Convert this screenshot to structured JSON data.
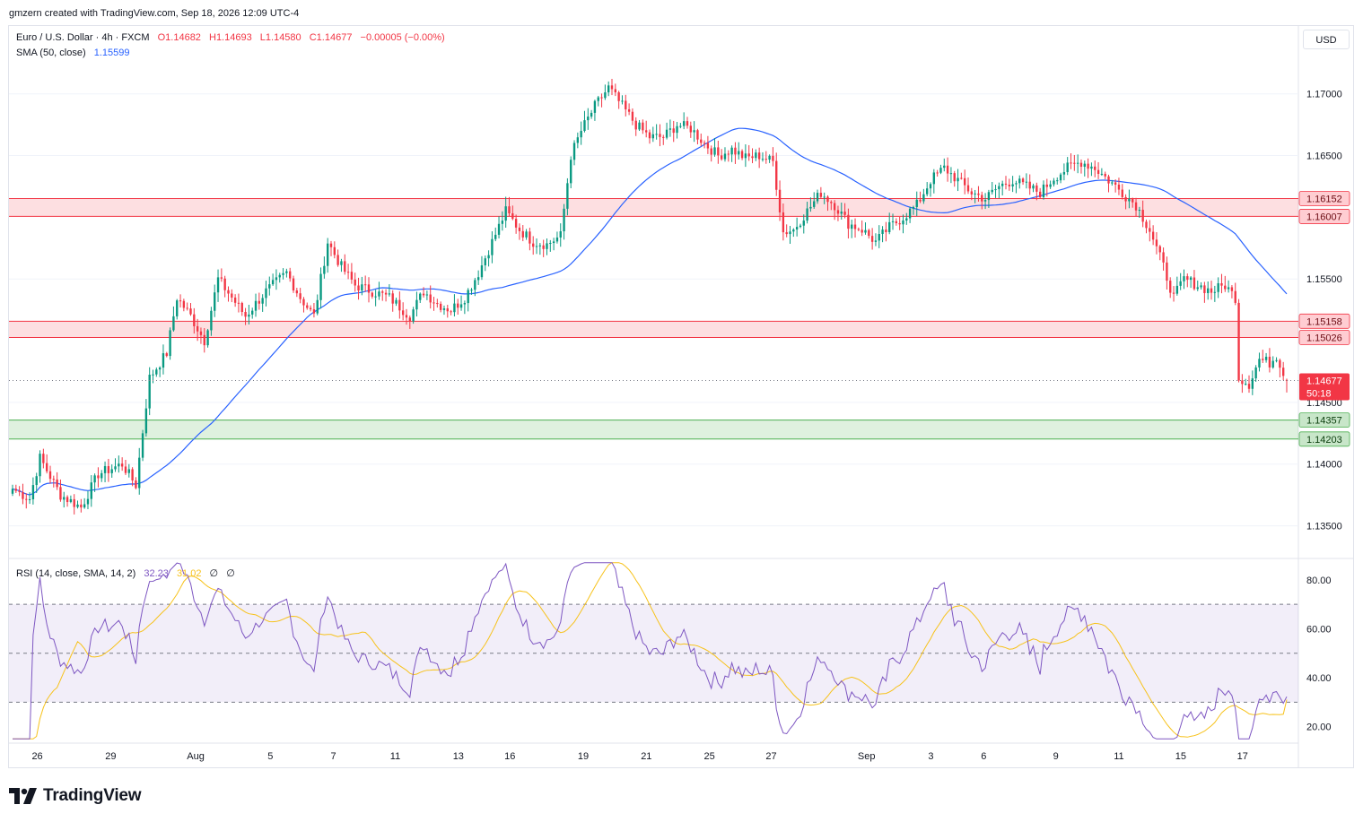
{
  "header": {
    "credit": "gmzern created with TradingView.com, Sep 18, 2026 12:09 UTC-4"
  },
  "legend": {
    "symbol": "Euro / U.S. Dollar · 4h · FXCM",
    "open": "O1.14682",
    "high": "H1.14693",
    "low": "L1.14580",
    "close": "C1.14677",
    "change": "−0.00005 (−0.00%)",
    "sma_label": "SMA (50, close)",
    "sma_value": "1.15599",
    "rsi_label": "RSI (14, close, SMA, 14, 2)",
    "rsi_value": "32.23",
    "rsi_ma_value": "31.02",
    "rsi_extra1": "∅",
    "rsi_extra2": "∅"
  },
  "currency_button": "USD",
  "price_axis": {
    "ticks": [
      "1.17000",
      "1.16500",
      "1.15500",
      "1.14500",
      "1.14000",
      "1.13500"
    ],
    "current_price_label": "1.14677",
    "countdown_label": "50:18"
  },
  "rsi_axis": {
    "ticks": [
      "80.00",
      "60.00",
      "40.00",
      "20.00"
    ]
  },
  "time_axis": {
    "labels": [
      "26",
      "29",
      "Aug",
      "5",
      "7",
      "11",
      "13",
      "16",
      "19",
      "21",
      "25",
      "27",
      "Sep",
      "3",
      "6",
      "9",
      "11",
      "15",
      "17"
    ]
  },
  "footer": {
    "brand": "TradingView"
  },
  "colors": {
    "up": "#089981",
    "down": "#f23645",
    "sma": "#2962ff",
    "rsi": "#7e57c2",
    "rsi_ma": "#f7c21b",
    "resistance_zone": "#f23645",
    "support_zone": "#4caf50"
  },
  "chart_data": [
    {
      "type": "candlestick",
      "symbol": "EURUSD",
      "timeframe": "4h",
      "ylim": [
        1.1325,
        1.1755
      ],
      "y_ticks": [
        1.17,
        1.165,
        1.155,
        1.145,
        1.14,
        1.135
      ],
      "x_labels": [
        "26",
        "29",
        "Aug",
        "5",
        "7",
        "11",
        "13",
        "16",
        "19",
        "21",
        "25",
        "27",
        "Sep",
        "3",
        "6",
        "9",
        "11",
        "15",
        "17"
      ],
      "close_anchors": [
        [
          0,
          1.138
        ],
        [
          5,
          1.1372
        ],
        [
          8,
          1.1405
        ],
        [
          14,
          1.1375
        ],
        [
          20,
          1.1365
        ],
        [
          25,
          1.1392
        ],
        [
          32,
          1.14
        ],
        [
          36,
          1.1383
        ],
        [
          40,
          1.147
        ],
        [
          45,
          1.149
        ],
        [
          48,
          1.1535
        ],
        [
          52,
          1.152
        ],
        [
          56,
          1.15
        ],
        [
          60,
          1.155
        ],
        [
          64,
          1.1535
        ],
        [
          68,
          1.152
        ],
        [
          74,
          1.154
        ],
        [
          80,
          1.1555
        ],
        [
          84,
          1.1535
        ],
        [
          88,
          1.152
        ],
        [
          92,
          1.158
        ],
        [
          96,
          1.156
        ],
        [
          100,
          1.1545
        ],
        [
          105,
          1.154
        ],
        [
          110,
          1.1535
        ],
        [
          116,
          1.152
        ],
        [
          120,
          1.154
        ],
        [
          124,
          1.153
        ],
        [
          128,
          1.1525
        ],
        [
          132,
          1.1535
        ],
        [
          136,
          1.1555
        ],
        [
          140,
          1.158
        ],
        [
          144,
          1.1605
        ],
        [
          148,
          1.159
        ],
        [
          152,
          1.158
        ],
        [
          156,
          1.1578
        ],
        [
          160,
          1.1585
        ],
        [
          163,
          1.165
        ],
        [
          166,
          1.167
        ],
        [
          170,
          1.169
        ],
        [
          174,
          1.1705
        ],
        [
          178,
          1.169
        ],
        [
          182,
          1.1675
        ],
        [
          186,
          1.1665
        ],
        [
          190,
          1.1665
        ],
        [
          194,
          1.1675
        ],
        [
          198,
          1.1672
        ],
        [
          202,
          1.166
        ],
        [
          206,
          1.165
        ],
        [
          210,
          1.1655
        ],
        [
          214,
          1.1648
        ],
        [
          218,
          1.165
        ],
        [
          222,
          1.1645
        ],
        [
          225,
          1.1588
        ],
        [
          228,
          1.159
        ],
        [
          232,
          1.1605
        ],
        [
          236,
          1.162
        ],
        [
          240,
          1.161
        ],
        [
          244,
          1.1595
        ],
        [
          248,
          1.159
        ],
        [
          252,
          1.158
        ],
        [
          256,
          1.1592
        ],
        [
          260,
          1.16
        ],
        [
          264,
          1.161
        ],
        [
          268,
          1.163
        ],
        [
          272,
          1.164
        ],
        [
          276,
          1.163
        ],
        [
          280,
          1.162
        ],
        [
          284,
          1.1615
        ],
        [
          288,
          1.1625
        ],
        [
          292,
          1.163
        ],
        [
          296,
          1.1625
        ],
        [
          300,
          1.162
        ],
        [
          304,
          1.1632
        ],
        [
          308,
          1.164
        ],
        [
          312,
          1.1645
        ],
        [
          316,
          1.164
        ],
        [
          320,
          1.163
        ],
        [
          324,
          1.162
        ],
        [
          328,
          1.161
        ],
        [
          332,
          1.159
        ],
        [
          336,
          1.156
        ],
        [
          339,
          1.1535
        ],
        [
          342,
          1.155
        ],
        [
          346,
          1.1545
        ],
        [
          350,
          1.154
        ],
        [
          354,
          1.1545
        ],
        [
          357,
          1.1535
        ],
        [
          358,
          1.147
        ],
        [
          361,
          1.1465
        ],
        [
          364,
          1.1485
        ],
        [
          367,
          1.1482
        ],
        [
          369,
          1.1488
        ],
        [
          372,
          1.1468
        ]
      ],
      "last_candle": {
        "open": 1.14682,
        "high": 1.14693,
        "low": 1.1458,
        "close": 1.14677
      },
      "current_price": 1.14677,
      "current_price_label": "1.14677",
      "sma": {
        "name": "SMA (50, close)",
        "last": 1.15599
      },
      "zones": [
        {
          "from": 1.16007,
          "to": 1.16152,
          "kind": "resistance",
          "labels": [
            "1.16152",
            "1.16007"
          ]
        },
        {
          "from": 1.15026,
          "to": 1.15158,
          "kind": "resistance",
          "labels": [
            "1.15158",
            "1.15026"
          ]
        },
        {
          "from": 1.14203,
          "to": 1.14357,
          "kind": "support",
          "labels": [
            "1.14357",
            "1.14203"
          ]
        }
      ]
    },
    {
      "type": "line",
      "name": "RSI (14, close, SMA, 14, 2)",
      "ylim": [
        14,
        88
      ],
      "y_ticks": [
        80,
        60,
        40,
        20
      ],
      "levels": [
        70,
        50,
        30
      ],
      "last_rsi": 32.23,
      "last_ma": 31.02
    }
  ]
}
